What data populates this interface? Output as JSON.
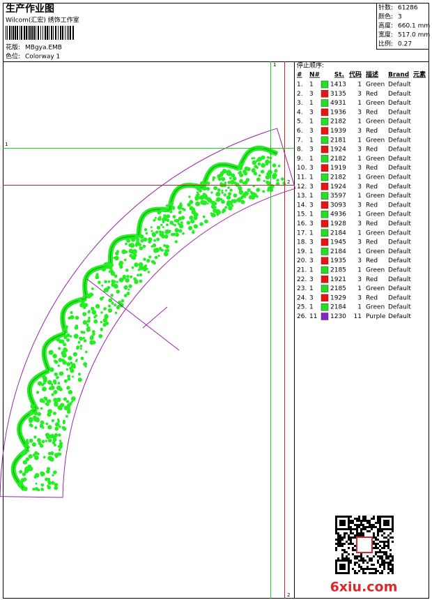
{
  "header": {
    "title": "生产作业图",
    "studio": "Wilcom(汇宏) 绣饰工作室",
    "design": {
      "label": "花版:",
      "value": "MBgya.EMB"
    },
    "colorway": {
      "label": "色位:",
      "value": "Colorway 1"
    }
  },
  "stats": [
    {
      "label": "针数:",
      "value": "61286"
    },
    {
      "label": "颜色:",
      "value": "3"
    },
    {
      "label": "高度:",
      "value": "660.1 mm"
    },
    {
      "label": "宽度:",
      "value": "517.0 mm"
    },
    {
      "label": "比例:",
      "value": "0.27"
    }
  ],
  "stop_sequence": {
    "title": "停止顺序:",
    "columns": [
      "#",
      "N#",
      "St.",
      "代码",
      "描述",
      "Brand",
      "元素"
    ],
    "rows": [
      {
        "index": "1.",
        "needle": 1,
        "color": "#22e022",
        "stitches": 1413,
        "code": 1,
        "description": "Green",
        "brand": "Default"
      },
      {
        "index": "2.",
        "needle": 3,
        "color": "#ee1111",
        "stitches": 3135,
        "code": 3,
        "description": "Red",
        "brand": "Default"
      },
      {
        "index": "3.",
        "needle": 1,
        "color": "#22e022",
        "stitches": 4931,
        "code": 1,
        "description": "Green",
        "brand": "Default"
      },
      {
        "index": "4.",
        "needle": 3,
        "color": "#ee1111",
        "stitches": 1936,
        "code": 3,
        "description": "Red",
        "brand": "Default"
      },
      {
        "index": "5.",
        "needle": 1,
        "color": "#22e022",
        "stitches": 2182,
        "code": 1,
        "description": "Green",
        "brand": "Default"
      },
      {
        "index": "6.",
        "needle": 3,
        "color": "#ee1111",
        "stitches": 1939,
        "code": 3,
        "description": "Red",
        "brand": "Default"
      },
      {
        "index": "7.",
        "needle": 1,
        "color": "#22e022",
        "stitches": 2181,
        "code": 1,
        "description": "Green",
        "brand": "Default"
      },
      {
        "index": "8.",
        "needle": 3,
        "color": "#ee1111",
        "stitches": 1924,
        "code": 3,
        "description": "Red",
        "brand": "Default"
      },
      {
        "index": "9.",
        "needle": 1,
        "color": "#22e022",
        "stitches": 2182,
        "code": 1,
        "description": "Green",
        "brand": "Default"
      },
      {
        "index": "10.",
        "needle": 3,
        "color": "#ee1111",
        "stitches": 1919,
        "code": 3,
        "description": "Red",
        "brand": "Default"
      },
      {
        "index": "11.",
        "needle": 1,
        "color": "#22e022",
        "stitches": 2182,
        "code": 1,
        "description": "Green",
        "brand": "Default"
      },
      {
        "index": "12.",
        "needle": 3,
        "color": "#ee1111",
        "stitches": 1924,
        "code": 3,
        "description": "Red",
        "brand": "Default"
      },
      {
        "index": "13.",
        "needle": 1,
        "color": "#22e022",
        "stitches": 3597,
        "code": 1,
        "description": "Green",
        "brand": "Default"
      },
      {
        "index": "14.",
        "needle": 3,
        "color": "#ee1111",
        "stitches": 3093,
        "code": 3,
        "description": "Red",
        "brand": "Default"
      },
      {
        "index": "15.",
        "needle": 1,
        "color": "#22e022",
        "stitches": 4936,
        "code": 1,
        "description": "Green",
        "brand": "Default"
      },
      {
        "index": "16.",
        "needle": 3,
        "color": "#ee1111",
        "stitches": 1928,
        "code": 3,
        "description": "Red",
        "brand": "Default"
      },
      {
        "index": "17.",
        "needle": 1,
        "color": "#22e022",
        "stitches": 2184,
        "code": 1,
        "description": "Green",
        "brand": "Default"
      },
      {
        "index": "18.",
        "needle": 3,
        "color": "#ee1111",
        "stitches": 1945,
        "code": 3,
        "description": "Red",
        "brand": "Default"
      },
      {
        "index": "19.",
        "needle": 1,
        "color": "#22e022",
        "stitches": 2184,
        "code": 1,
        "description": "Green",
        "brand": "Default"
      },
      {
        "index": "20.",
        "needle": 3,
        "color": "#ee1111",
        "stitches": 1935,
        "code": 3,
        "description": "Red",
        "brand": "Default"
      },
      {
        "index": "21.",
        "needle": 1,
        "color": "#22e022",
        "stitches": 2185,
        "code": 1,
        "description": "Green",
        "brand": "Default"
      },
      {
        "index": "22.",
        "needle": 3,
        "color": "#ee1111",
        "stitches": 1921,
        "code": 3,
        "description": "Red",
        "brand": "Default"
      },
      {
        "index": "23.",
        "needle": 1,
        "color": "#22e022",
        "stitches": 2185,
        "code": 1,
        "description": "Green",
        "brand": "Default"
      },
      {
        "index": "24.",
        "needle": 3,
        "color": "#ee1111",
        "stitches": 1929,
        "code": 3,
        "description": "Red",
        "brand": "Default"
      },
      {
        "index": "25.",
        "needle": 1,
        "color": "#22e022",
        "stitches": 2184,
        "code": 1,
        "description": "Green",
        "brand": "Default"
      },
      {
        "index": "26.",
        "needle": 11,
        "color": "#8a22cc",
        "stitches": 1230,
        "code": 11,
        "description": "Purple",
        "brand": "Default"
      }
    ]
  },
  "guides": {
    "green_vertical": "1",
    "green_horizontal": "1",
    "red_horizontal": "2",
    "red_vertical": "2"
  },
  "watermark": "6xiu.com"
}
